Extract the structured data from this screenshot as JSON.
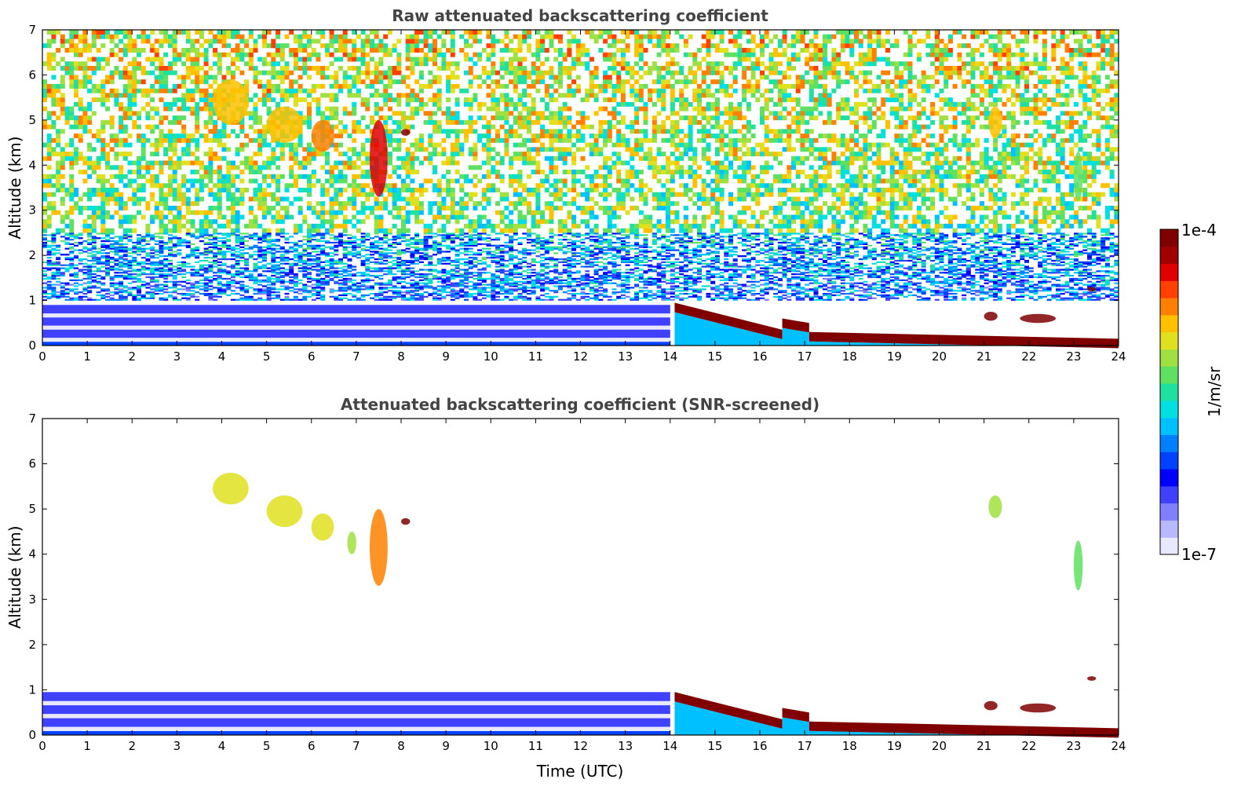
{
  "chart_data": [
    {
      "type": "heatmap",
      "title": "Raw attenuated backscattering coefficient",
      "xlabel": "",
      "ylabel": "Altitude (km)",
      "xlim": [
        0,
        24
      ],
      "ylim": [
        0,
        7
      ],
      "xticks": [
        "0",
        "1",
        "2",
        "3",
        "4",
        "5",
        "6",
        "7",
        "8",
        "9",
        "10",
        "11",
        "12",
        "13",
        "14",
        "15",
        "16",
        "17",
        "18",
        "19",
        "20",
        "21",
        "22",
        "23",
        "24"
      ],
      "yticks": [
        "0",
        "1",
        "2",
        "3",
        "4",
        "5",
        "6",
        "7"
      ],
      "features": [
        {
          "kind": "noise",
          "time": [
            0,
            24
          ],
          "alt": [
            2.5,
            7
          ],
          "level": 0.55
        },
        {
          "kind": "noise",
          "time": [
            0,
            24
          ],
          "alt": [
            1.0,
            2.5
          ],
          "level": 0.3
        },
        {
          "kind": "boundary_layer",
          "time": [
            0,
            14
          ],
          "alt": [
            0,
            0.9
          ],
          "level": 0.15
        },
        {
          "kind": "cloud_layer",
          "time": [
            14.1,
            16.5
          ],
          "alt_start": 0.95,
          "alt_end": 0.35,
          "level": 0.97
        },
        {
          "kind": "cloud_layer",
          "time": [
            16.5,
            17.1
          ],
          "alt_start": 0.6,
          "alt_end": 0.5,
          "level": 0.97
        },
        {
          "kind": "cloud_layer",
          "time": [
            17.1,
            24
          ],
          "alt_start": 0.3,
          "alt_end": 0.15,
          "level": 0.97
        },
        {
          "kind": "cirrus",
          "time": [
            3.8,
            4.6
          ],
          "alt": [
            4.9,
            5.9
          ],
          "level": 0.7
        },
        {
          "kind": "cirrus",
          "time": [
            5.0,
            5.8
          ],
          "alt": [
            4.5,
            5.3
          ],
          "level": 0.72
        },
        {
          "kind": "cirrus",
          "time": [
            6.0,
            6.5
          ],
          "alt": [
            4.3,
            5.0
          ],
          "level": 0.75
        },
        {
          "kind": "cirrus",
          "time": [
            7.3,
            7.7
          ],
          "alt": [
            3.3,
            5.0
          ],
          "level": 0.85
        },
        {
          "kind": "cirrus",
          "time": [
            8.0,
            8.2
          ],
          "alt": [
            4.65,
            4.8
          ],
          "level": 0.97
        },
        {
          "kind": "cirrus",
          "time": [
            21.1,
            21.4
          ],
          "alt": [
            4.6,
            5.3
          ],
          "level": 0.7
        },
        {
          "kind": "cirrus",
          "time": [
            23.0,
            23.2
          ],
          "alt": [
            3.2,
            4.3
          ],
          "level": 0.55
        },
        {
          "kind": "cloud",
          "time": [
            21.0,
            21.3
          ],
          "alt": [
            0.55,
            0.75
          ],
          "level": 0.95
        },
        {
          "kind": "cloud",
          "time": [
            21.8,
            22.6
          ],
          "alt": [
            0.5,
            0.7
          ],
          "level": 0.95
        },
        {
          "kind": "cloud",
          "time": [
            23.3,
            23.5
          ],
          "alt": [
            1.2,
            1.3
          ],
          "level": 0.95
        }
      ]
    },
    {
      "type": "heatmap",
      "title": "Attenuated backscattering coefficient (SNR-screened)",
      "xlabel": "Time (UTC)",
      "ylabel": "Altitude (km)",
      "xlim": [
        0,
        24
      ],
      "ylim": [
        0,
        7
      ],
      "xticks": [
        "0",
        "1",
        "2",
        "3",
        "4",
        "5",
        "6",
        "7",
        "8",
        "9",
        "10",
        "11",
        "12",
        "13",
        "14",
        "15",
        "16",
        "17",
        "18",
        "19",
        "20",
        "21",
        "22",
        "23",
        "24"
      ],
      "yticks": [
        "0",
        "1",
        "2",
        "3",
        "4",
        "5",
        "6",
        "7"
      ],
      "features": [
        {
          "kind": "boundary_layer",
          "time": [
            0,
            14
          ],
          "alt": [
            0,
            0.95
          ],
          "level": 0.15
        },
        {
          "kind": "cloud_layer",
          "time": [
            14.1,
            16.5
          ],
          "alt_start": 0.95,
          "alt_end": 0.35,
          "level": 0.99
        },
        {
          "kind": "cloud_layer",
          "time": [
            16.5,
            17.1
          ],
          "alt_start": 0.6,
          "alt_end": 0.5,
          "level": 0.99
        },
        {
          "kind": "cloud_layer",
          "time": [
            17.1,
            24
          ],
          "alt_start": 0.3,
          "alt_end": 0.15,
          "level": 0.99
        },
        {
          "kind": "cirrus",
          "time": [
            3.8,
            4.6
          ],
          "alt": [
            5.1,
            5.8
          ],
          "level": 0.68
        },
        {
          "kind": "cirrus",
          "time": [
            5.0,
            5.8
          ],
          "alt": [
            4.6,
            5.3
          ],
          "level": 0.66
        },
        {
          "kind": "cirrus",
          "time": [
            6.0,
            6.5
          ],
          "alt": [
            4.3,
            4.9
          ],
          "level": 0.66
        },
        {
          "kind": "cirrus",
          "time": [
            6.8,
            7.0
          ],
          "alt": [
            4.0,
            4.5
          ],
          "level": 0.62
        },
        {
          "kind": "cirrus",
          "time": [
            7.3,
            7.7
          ],
          "alt": [
            3.3,
            5.0
          ],
          "level": 0.78
        },
        {
          "kind": "cirrus",
          "time": [
            8.0,
            8.2
          ],
          "alt": [
            4.65,
            4.8
          ],
          "level": 0.99
        },
        {
          "kind": "cirrus",
          "time": [
            21.1,
            21.4
          ],
          "alt": [
            4.8,
            5.3
          ],
          "level": 0.62
        },
        {
          "kind": "cirrus",
          "time": [
            23.0,
            23.2
          ],
          "alt": [
            3.2,
            4.3
          ],
          "level": 0.55
        },
        {
          "kind": "cloud",
          "time": [
            21.0,
            21.3
          ],
          "alt": [
            0.55,
            0.75
          ],
          "level": 0.99
        },
        {
          "kind": "cloud",
          "time": [
            21.8,
            22.6
          ],
          "alt": [
            0.5,
            0.7
          ],
          "level": 0.99
        },
        {
          "kind": "cloud",
          "time": [
            23.3,
            23.5
          ],
          "alt": [
            1.2,
            1.3
          ],
          "level": 0.99
        }
      ]
    }
  ],
  "colorbar": {
    "label": "1/m/sr",
    "max_label": "1e-4",
    "min_label": "1e-7",
    "colors": [
      "#e8e8ff",
      "#b8b8ff",
      "#8080ff",
      "#4040ff",
      "#0000ff",
      "#0040ff",
      "#0080ff",
      "#00c0ff",
      "#00e0e0",
      "#20e0a0",
      "#60e060",
      "#a0e040",
      "#e0e020",
      "#ffc000",
      "#ff8000",
      "#ff4000",
      "#e00000",
      "#a00000",
      "#800000"
    ]
  }
}
